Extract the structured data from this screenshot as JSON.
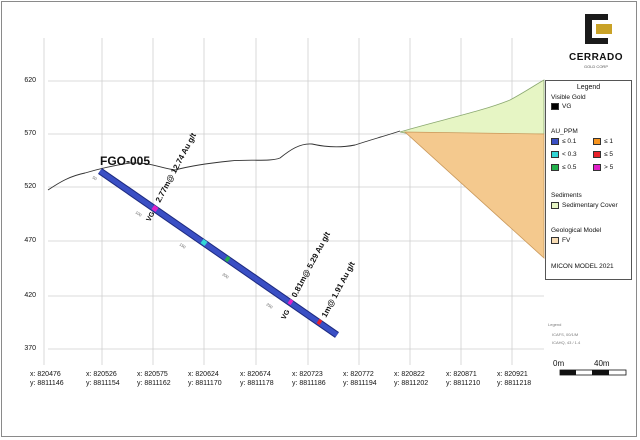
{
  "logo": {
    "name": "CERRADO",
    "subtitle": "GOLD CORP"
  },
  "drillhole": {
    "id": "FGO-005",
    "intercepts": [
      {
        "text": "2.77m@ 12.74 Au g/t",
        "tag": "VG"
      },
      {
        "text": "0.81m@ 5.29 Au g/t",
        "tag": "VG"
      },
      {
        "text": "1m@ 1.91 Au g/t",
        "tag": ""
      }
    ],
    "depth_marks": [
      "50",
      "100",
      "150",
      "200",
      "250"
    ]
  },
  "y_axis": {
    "ticks": [
      "620",
      "570",
      "520",
      "470",
      "420",
      "370"
    ]
  },
  "x_axis": {
    "ticks": [
      {
        "x": "x: 820476",
        "y": "y: 8811146"
      },
      {
        "x": "x: 820526",
        "y": "y: 8811154"
      },
      {
        "x": "x: 820575",
        "y": "y: 8811162"
      },
      {
        "x": "x: 820624",
        "y": "y: 8811170"
      },
      {
        "x": "x: 820674",
        "y": "y: 8811178"
      },
      {
        "x": "x: 820723",
        "y": "y: 8811186"
      },
      {
        "x": "x: 820772",
        "y": "y: 8811194"
      },
      {
        "x": "x: 820822",
        "y": "y: 8811202"
      },
      {
        "x": "x: 820871",
        "y": "y: 8811210"
      },
      {
        "x": "x: 820921",
        "y": "y: 8811218"
      }
    ]
  },
  "legend": {
    "title": "Legend",
    "visible_gold": {
      "heading": "Visible Gold",
      "item": "VG",
      "color": "#000000"
    },
    "au_ppm": {
      "heading": "AU_PPM",
      "items": [
        {
          "label": "≤ 0.1",
          "color": "#3a4fc4"
        },
        {
          "label": "< 0.3",
          "color": "#33d6d6"
        },
        {
          "label": "≤ 0.5",
          "color": "#22b14c"
        },
        {
          "label": "≤ 1",
          "color": "#f7941d"
        },
        {
          "label": "≤ 5",
          "color": "#e8202a"
        },
        {
          "label": "> 5",
          "color": "#e020c8"
        }
      ]
    },
    "sediments": {
      "heading": "Sediments",
      "item": "Sedimentary Cover",
      "color": "#e6f5c4"
    },
    "geological_model": {
      "heading": "Geological Model",
      "item": "FV",
      "color": "#f7dcb4"
    },
    "footer": "MICON MODEL 2021"
  },
  "minor_notes": [
    "Legend",
    "ICAFS, 00/1/M",
    "ICAHQ, 43 / 1.4"
  ],
  "scale_bar": {
    "left": "0m",
    "right": "40m"
  },
  "colors": {
    "drillhole": "#2e3fa8",
    "fv_body": "#f4c98e",
    "sed_cover": "#e6f5c4",
    "grid": "#c8c8c8",
    "topography": "#333333"
  }
}
